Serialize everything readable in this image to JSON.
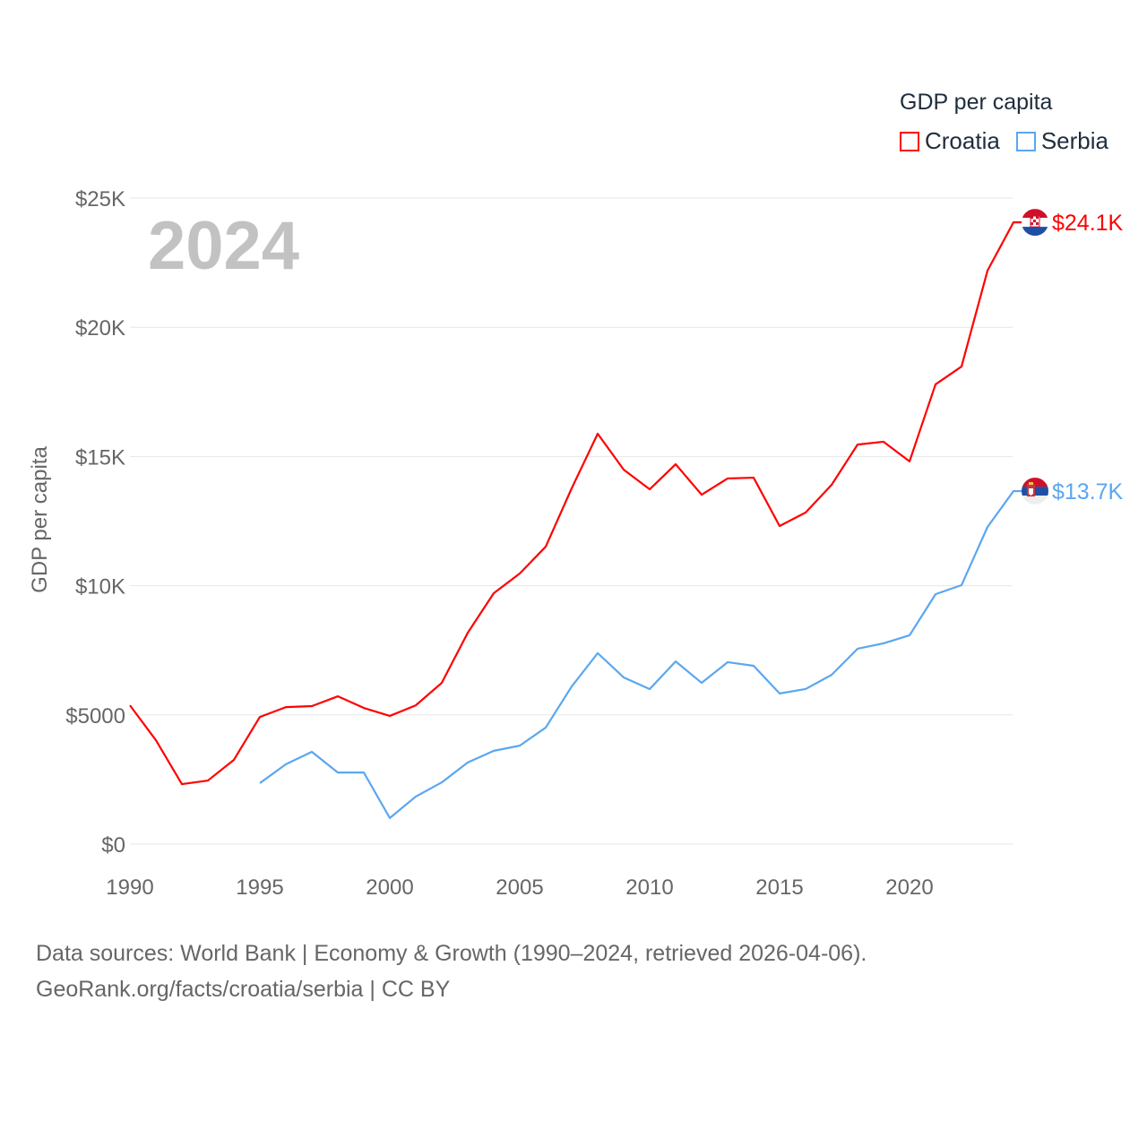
{
  "chart_data": {
    "type": "line",
    "title": "GDP per capita",
    "year_label": "2024",
    "xlabel": "",
    "ylabel": "GDP per capita",
    "xlim": [
      1990,
      2024
    ],
    "ylim": [
      0,
      25000
    ],
    "x_ticks": [
      1990,
      1995,
      2000,
      2005,
      2010,
      2015,
      2020
    ],
    "x_tick_labels": [
      "1990",
      "1995",
      "2000",
      "2005",
      "2010",
      "2015",
      "2020"
    ],
    "y_ticks": [
      0,
      5000,
      10000,
      15000,
      20000,
      25000
    ],
    "y_tick_labels": [
      "$0",
      "$5000",
      "$10K",
      "$15K",
      "$20K",
      "$25K"
    ],
    "grid": true,
    "legend_position": "top-right",
    "series": [
      {
        "name": "Croatia",
        "color": "#ff0000",
        "end_label": "$24.1K",
        "x": [
          1990,
          1991,
          1992,
          1993,
          1994,
          1995,
          1996,
          1997,
          1998,
          1999,
          2000,
          2001,
          2002,
          2003,
          2004,
          2005,
          2006,
          2007,
          2008,
          2009,
          2010,
          2011,
          2012,
          2013,
          2014,
          2015,
          2016,
          2017,
          2018,
          2019,
          2020,
          2021,
          2022,
          2023,
          2024
        ],
        "values": [
          5370,
          4020,
          2320,
          2460,
          3260,
          4920,
          5300,
          5340,
          5720,
          5270,
          4960,
          5370,
          6240,
          8180,
          9710,
          10470,
          11510,
          13770,
          15880,
          14490,
          13730,
          14700,
          13520,
          14150,
          14180,
          12310,
          12830,
          13900,
          15460,
          15570,
          14810,
          17790,
          18480,
          22190,
          24060
        ]
      },
      {
        "name": "Serbia",
        "color": "#5aa7f0",
        "end_label": "$13.7K",
        "x": [
          1995,
          1996,
          1997,
          1998,
          1999,
          2000,
          2001,
          2002,
          2003,
          2004,
          2005,
          2006,
          2007,
          2008,
          2009,
          2010,
          2011,
          2012,
          2013,
          2014,
          2015,
          2016,
          2017,
          2018,
          2019,
          2020,
          2021,
          2022,
          2023,
          2024
        ],
        "values": [
          2360,
          3090,
          3570,
          2770,
          2770,
          1010,
          1840,
          2390,
          3160,
          3610,
          3810,
          4510,
          6100,
          7390,
          6450,
          6000,
          7070,
          6240,
          7040,
          6900,
          5830,
          6000,
          6550,
          7560,
          7770,
          8080,
          9670,
          10020,
          12270,
          13660
        ]
      }
    ]
  },
  "source": {
    "line1": "Data sources: World Bank | Economy & Growth (1990–2024, retrieved 2026-04-06).",
    "line2": "GeoRank.org/facts/croatia/serbia | CC BY"
  }
}
